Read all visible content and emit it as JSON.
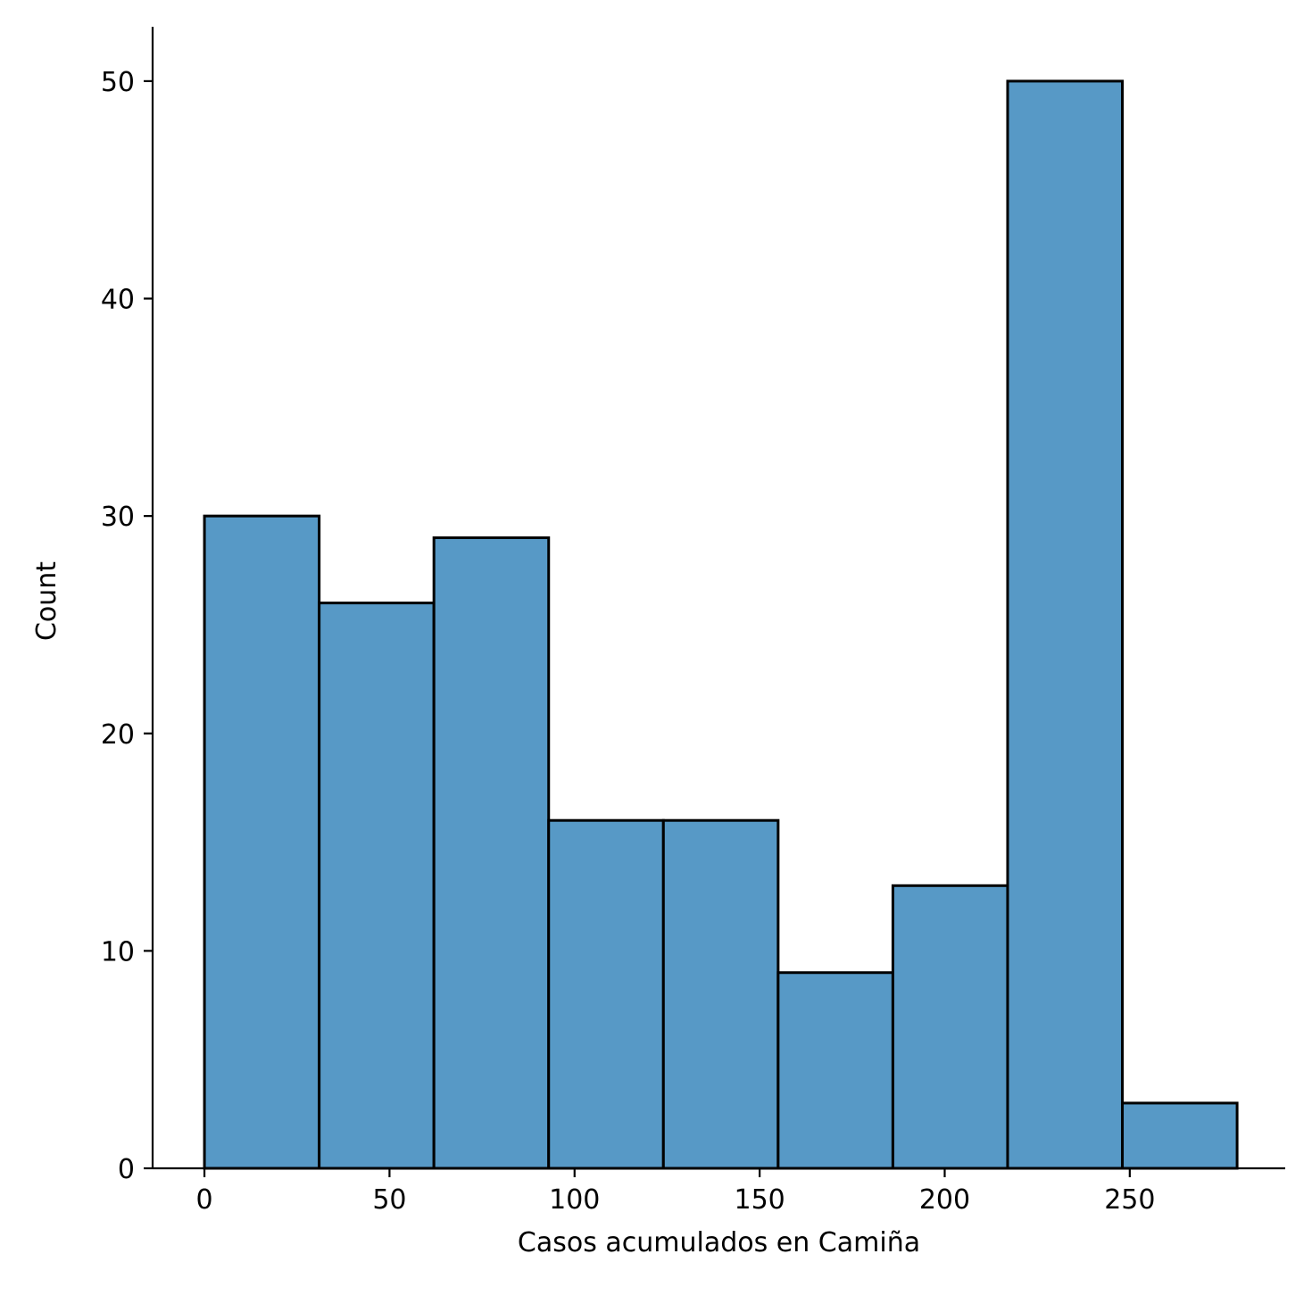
{
  "chart_data": {
    "type": "histogram",
    "title": "",
    "xlabel": "Casos acumulados en Camiña",
    "ylabel": "Count",
    "xlim": [
      -14,
      292
    ],
    "ylim": [
      0,
      52.5
    ],
    "bins": [
      {
        "start": 0,
        "end": 31,
        "count": 30
      },
      {
        "start": 31,
        "end": 62,
        "count": 26
      },
      {
        "start": 62,
        "end": 93,
        "count": 29
      },
      {
        "start": 93,
        "end": 124,
        "count": 16
      },
      {
        "start": 124,
        "end": 155,
        "count": 16
      },
      {
        "start": 155,
        "end": 186,
        "count": 9
      },
      {
        "start": 186,
        "end": 217,
        "count": 13
      },
      {
        "start": 217,
        "end": 248,
        "count": 50
      },
      {
        "start": 248,
        "end": 279,
        "count": 3
      }
    ],
    "x_ticks": [
      0,
      50,
      100,
      150,
      200,
      250
    ],
    "y_ticks": [
      0,
      10,
      20,
      30,
      40,
      50
    ],
    "bar_color": "#5799c6",
    "edge_color": "#000000",
    "grid": false,
    "legend": false
  }
}
